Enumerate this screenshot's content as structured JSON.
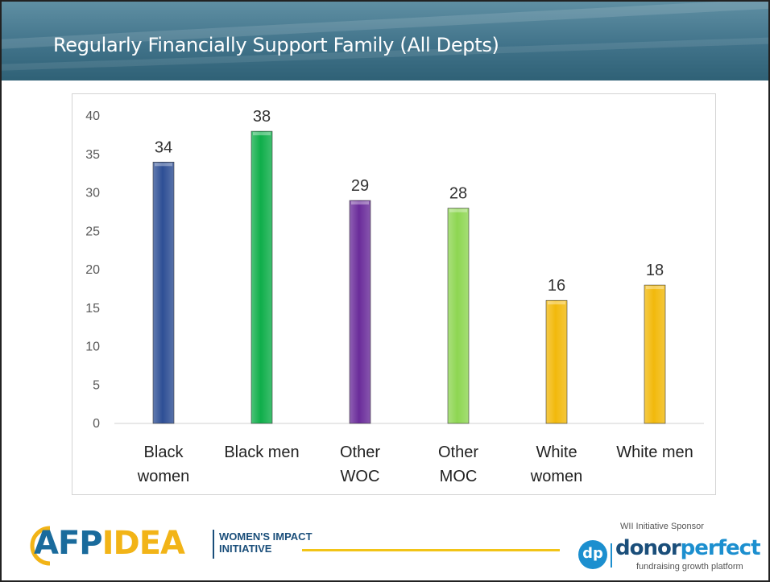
{
  "slide": {
    "title": "Regularly Financially Support Family (All Depts)"
  },
  "chart_data": {
    "type": "bar",
    "title": "",
    "xlabel": "",
    "ylabel": "",
    "ylim": [
      0,
      40
    ],
    "yticks": [
      0,
      5,
      10,
      15,
      20,
      25,
      30,
      35,
      40
    ],
    "grid": false,
    "legend": "none",
    "categories": [
      [
        "Black",
        "women"
      ],
      [
        "Black men"
      ],
      [
        "Other",
        "WOC"
      ],
      [
        "Other",
        "MOC"
      ],
      [
        "White",
        "women"
      ],
      [
        "White men"
      ]
    ],
    "values": [
      34,
      38,
      29,
      28,
      16,
      18
    ],
    "data_labels": [
      "34",
      "38",
      "29",
      "28",
      "16",
      "18"
    ],
    "colors": [
      "#2e4f95",
      "#0fae4a",
      "#6a2c9a",
      "#8ed652",
      "#f2b90c",
      "#f2b90c"
    ]
  },
  "footer": {
    "afp_brand": "AFP",
    "idea_brand": "IDEA",
    "wii_line1": "WOMEN'S IMPACT",
    "wii_line2": "INITIATIVE",
    "sponsor_label": "WII Initiative Sponsor",
    "dp_mark": "dp",
    "dp_donor": "donor",
    "dp_perfect": "perfect",
    "dp_tagline": "fundraising growth platform",
    "accent": "#f2c417",
    "brand_blue": "#1a6b9c"
  }
}
